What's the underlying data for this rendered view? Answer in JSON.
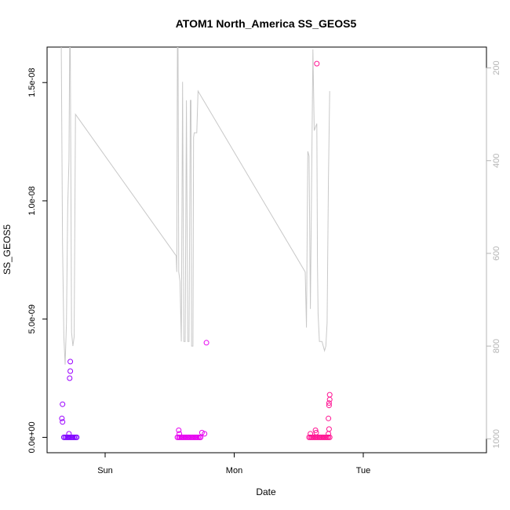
{
  "chart_data": {
    "type": "scatter",
    "title": "ATOM1 North_America SS_GEOS5",
    "xlabel": "Date",
    "ylabel": "SS_GEOS5",
    "x_ticks": [
      "Sun",
      "Mon",
      "Tue"
    ],
    "y_ticks": [
      "0.0e+00",
      "5.0e-09",
      "1.0e-08",
      "1.5e-08"
    ],
    "y_tick_values": [
      0,
      5e-09,
      1e-08,
      1.5e-08
    ],
    "y2_ticks": [
      "200",
      "400",
      "600",
      "800",
      "1000"
    ],
    "y2_tick_values": [
      200,
      400,
      600,
      800,
      1000
    ],
    "x_range_days": [
      -0.38,
      2.95
    ],
    "ylim": [
      -6.5e-10,
      1.65e-08
    ],
    "y2lim": [
      1030,
      155
    ],
    "y2_inverted": true,
    "line_color": "#c8c8c8",
    "colors": {
      "purple": "#7f00ff",
      "violet": "#9a00ff",
      "magenta": "#e600f0",
      "pink": "#ff1493"
    },
    "points": [
      {
        "x": -0.33,
        "y": 1.4e-09,
        "c": "#9a00ff"
      },
      {
        "x": -0.335,
        "y": 8e-10,
        "c": "#9a00ff"
      },
      {
        "x": -0.33,
        "y": 6.5e-10,
        "c": "#9a00ff"
      },
      {
        "x": -0.27,
        "y": 3.2e-09,
        "c": "#9a00ff"
      },
      {
        "x": -0.27,
        "y": 2.8e-09,
        "c": "#9a00ff"
      },
      {
        "x": -0.275,
        "y": 2.5e-09,
        "c": "#9a00ff"
      },
      {
        "x": -0.28,
        "y": 1.5e-10,
        "c": "#9a00ff"
      },
      {
        "x": -0.32,
        "y": 0,
        "c": "#7f00ff"
      },
      {
        "x": -0.31,
        "y": 0,
        "c": "#7f00ff"
      },
      {
        "x": -0.3,
        "y": 0,
        "c": "#7f00ff"
      },
      {
        "x": -0.29,
        "y": 0,
        "c": "#7f00ff"
      },
      {
        "x": -0.28,
        "y": 0,
        "c": "#7f00ff"
      },
      {
        "x": -0.27,
        "y": 0,
        "c": "#7f00ff"
      },
      {
        "x": -0.26,
        "y": 0,
        "c": "#7f00ff"
      },
      {
        "x": -0.25,
        "y": 0,
        "c": "#7f00ff"
      },
      {
        "x": -0.24,
        "y": 0,
        "c": "#7f00ff"
      },
      {
        "x": -0.23,
        "y": 0,
        "c": "#7f00ff"
      },
      {
        "x": -0.22,
        "y": 0,
        "c": "#7f00ff"
      },
      {
        "x": 0.57,
        "y": 3e-10,
        "c": "#e600f0"
      },
      {
        "x": 0.575,
        "y": 1.5e-10,
        "c": "#e600f0"
      },
      {
        "x": 0.56,
        "y": 0,
        "c": "#e600f0"
      },
      {
        "x": 0.57,
        "y": 0,
        "c": "#e600f0"
      },
      {
        "x": 0.58,
        "y": 0,
        "c": "#e600f0"
      },
      {
        "x": 0.59,
        "y": 0,
        "c": "#e600f0"
      },
      {
        "x": 0.6,
        "y": 0,
        "c": "#e600f0"
      },
      {
        "x": 0.61,
        "y": 0,
        "c": "#e600f0"
      },
      {
        "x": 0.62,
        "y": 0,
        "c": "#e600f0"
      },
      {
        "x": 0.63,
        "y": 0,
        "c": "#e600f0"
      },
      {
        "x": 0.64,
        "y": 0,
        "c": "#e600f0"
      },
      {
        "x": 0.65,
        "y": 0,
        "c": "#e600f0"
      },
      {
        "x": 0.66,
        "y": 0,
        "c": "#e600f0"
      },
      {
        "x": 0.67,
        "y": 0,
        "c": "#e600f0"
      },
      {
        "x": 0.68,
        "y": 0,
        "c": "#e600f0"
      },
      {
        "x": 0.69,
        "y": 0,
        "c": "#e600f0"
      },
      {
        "x": 0.7,
        "y": 0,
        "c": "#e600f0"
      },
      {
        "x": 0.71,
        "y": 0,
        "c": "#e600f0"
      },
      {
        "x": 0.72,
        "y": 0,
        "c": "#e600f0"
      },
      {
        "x": 0.73,
        "y": 0,
        "c": "#e600f0"
      },
      {
        "x": 0.74,
        "y": 0,
        "c": "#e600f0"
      },
      {
        "x": 0.75,
        "y": 2e-10,
        "c": "#e600f0"
      },
      {
        "x": 0.77,
        "y": 1.5e-10,
        "c": "#e600f0"
      },
      {
        "x": 0.785,
        "y": 4e-09,
        "c": "#e600f0"
      },
      {
        "x": 1.64,
        "y": 1.58e-08,
        "c": "#ff1493"
      },
      {
        "x": 1.63,
        "y": 3e-10,
        "c": "#ff1493"
      },
      {
        "x": 1.635,
        "y": 2e-10,
        "c": "#ff1493"
      },
      {
        "x": 1.59,
        "y": 1.5e-10,
        "c": "#ff1493"
      },
      {
        "x": 1.58,
        "y": 0,
        "c": "#ff1493"
      },
      {
        "x": 1.59,
        "y": 0,
        "c": "#ff1493"
      },
      {
        "x": 1.6,
        "y": 0,
        "c": "#ff1493"
      },
      {
        "x": 1.61,
        "y": 0,
        "c": "#ff1493"
      },
      {
        "x": 1.62,
        "y": 0,
        "c": "#ff1493"
      },
      {
        "x": 1.63,
        "y": 0,
        "c": "#ff1493"
      },
      {
        "x": 1.64,
        "y": 0,
        "c": "#ff1493"
      },
      {
        "x": 1.65,
        "y": 0,
        "c": "#ff1493"
      },
      {
        "x": 1.66,
        "y": 0,
        "c": "#ff1493"
      },
      {
        "x": 1.67,
        "y": 0,
        "c": "#ff1493"
      },
      {
        "x": 1.68,
        "y": 0,
        "c": "#ff1493"
      },
      {
        "x": 1.69,
        "y": 0,
        "c": "#ff1493"
      },
      {
        "x": 1.7,
        "y": 0,
        "c": "#ff1493"
      },
      {
        "x": 1.71,
        "y": 0,
        "c": "#ff1493"
      },
      {
        "x": 1.72,
        "y": 0,
        "c": "#ff1493"
      },
      {
        "x": 1.73,
        "y": 0,
        "c": "#ff1493"
      },
      {
        "x": 1.74,
        "y": 0,
        "c": "#ff1493"
      },
      {
        "x": 1.74,
        "y": 1.8e-09,
        "c": "#ff1493"
      },
      {
        "x": 1.74,
        "y": 1.6e-09,
        "c": "#ff1493"
      },
      {
        "x": 1.735,
        "y": 1.45e-09,
        "c": "#ff1493"
      },
      {
        "x": 1.735,
        "y": 1.35e-09,
        "c": "#ff1493"
      },
      {
        "x": 1.73,
        "y": 8e-10,
        "c": "#ff1493"
      },
      {
        "x": 1.735,
        "y": 3.5e-10,
        "c": "#ff1493"
      },
      {
        "x": 1.73,
        "y": 1.5e-10,
        "c": "#ff1493"
      }
    ],
    "pressure_line": [
      [
        -0.34,
        155
      ],
      [
        -0.33,
        580
      ],
      [
        -0.32,
        780
      ],
      [
        -0.31,
        840
      ],
      [
        -0.3,
        750
      ],
      [
        -0.29,
        500
      ],
      [
        -0.28,
        400
      ],
      [
        -0.275,
        155
      ],
      [
        -0.27,
        155
      ],
      [
        -0.26,
        770
      ],
      [
        -0.25,
        800
      ],
      [
        -0.24,
        780
      ],
      [
        -0.23,
        300
      ],
      [
        0.55,
        605
      ],
      [
        0.555,
        640
      ],
      [
        0.56,
        155
      ],
      [
        0.565,
        155
      ],
      [
        0.57,
        640
      ],
      [
        0.58,
        660
      ],
      [
        0.59,
        790
      ],
      [
        0.6,
        230
      ],
      [
        0.61,
        790
      ],
      [
        0.62,
        790
      ],
      [
        0.63,
        270
      ],
      [
        0.64,
        790
      ],
      [
        0.65,
        790
      ],
      [
        0.66,
        270
      ],
      [
        0.665,
        270
      ],
      [
        0.67,
        800
      ],
      [
        0.68,
        800
      ],
      [
        0.685,
        350
      ],
      [
        0.69,
        340
      ],
      [
        0.71,
        340
      ],
      [
        0.72,
        250
      ],
      [
        1.55,
        640
      ],
      [
        1.56,
        760
      ],
      [
        1.57,
        380
      ],
      [
        1.58,
        390
      ],
      [
        1.59,
        720
      ],
      [
        1.61,
        160
      ],
      [
        1.62,
        335
      ],
      [
        1.64,
        320
      ],
      [
        1.645,
        620
      ],
      [
        1.65,
        730
      ],
      [
        1.66,
        790
      ],
      [
        1.67,
        790
      ],
      [
        1.68,
        790
      ],
      [
        1.69,
        800
      ],
      [
        1.7,
        810
      ],
      [
        1.71,
        800
      ],
      [
        1.72,
        750
      ],
      [
        1.73,
        440
      ],
      [
        1.74,
        250
      ]
    ]
  }
}
